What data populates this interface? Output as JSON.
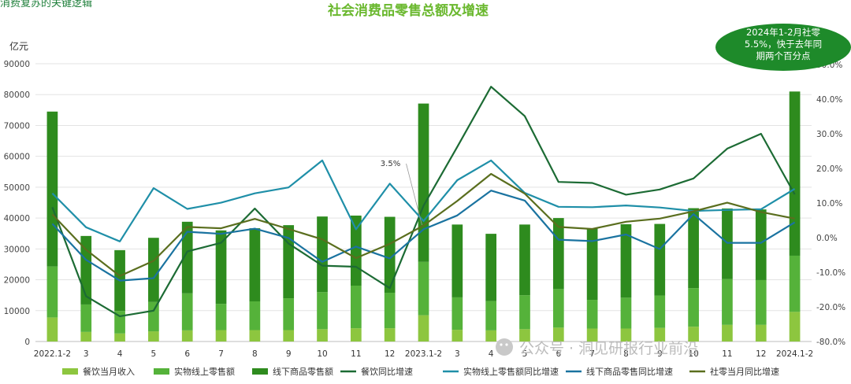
{
  "header": {
    "corner_text": "消费复苏的关键逻辑"
  },
  "note": {
    "lines": [
      "2024年1-2月社零",
      "5.5%，快于去年同",
      "期两个百分点"
    ],
    "color": "#1e8a2a"
  },
  "watermark": "公众号 · 洞见研报行业前沿",
  "chart_data": {
    "type": "bar",
    "title": "社会消费品零售总额及增速",
    "left_axis_unit": "亿元",
    "ylim_left": [
      0,
      90000
    ],
    "left_ticks": [
      "0",
      "10000",
      "20000",
      "30000",
      "40000",
      "50000",
      "60000",
      "70000",
      "80000",
      "90000"
    ],
    "ylim_right": [
      -0.8,
      0.5
    ],
    "right_ticks": [
      "-80.0%",
      "-20.0%",
      "-10.0%",
      "0.0%",
      "10.0%",
      "20.0%",
      "30.0%",
      "40.0%",
      "50.0%"
    ],
    "categories": [
      "2022.1-2",
      "3",
      "4",
      "5",
      "6",
      "7",
      "8",
      "9",
      "10",
      "11",
      "12",
      "2023.1-2",
      "3",
      "4",
      "5",
      "6",
      "7",
      "8",
      "9",
      "10",
      "11",
      "12",
      "2024.1-2"
    ],
    "bar_series": [
      {
        "name": "餐饮当月收入",
        "color": "#8dc63f",
        "values": [
          7800,
          3100,
          2600,
          3300,
          3600,
          3700,
          3700,
          3700,
          4000,
          4300,
          4300,
          8500,
          3800,
          3600,
          4000,
          4500,
          4200,
          4200,
          4400,
          4800,
          5400,
          5400,
          9600
        ]
      },
      {
        "name": "实物线上零售额",
        "color": "#55b23a",
        "values": [
          16500,
          8900,
          7300,
          9500,
          12000,
          8500,
          9300,
          10300,
          12000,
          13800,
          11500,
          17300,
          10500,
          9500,
          11000,
          12500,
          9300,
          10000,
          10500,
          12500,
          14800,
          14500,
          18200
        ]
      },
      {
        "name": "线下商品零售额",
        "color": "#2e8b1e",
        "values": [
          50200,
          22200,
          19700,
          20800,
          23200,
          23800,
          23700,
          23700,
          24500,
          22700,
          24600,
          51300,
          23600,
          21800,
          22900,
          23000,
          23100,
          23800,
          23200,
          25900,
          22900,
          22900,
          53200
        ]
      }
    ],
    "line_series": [
      {
        "name": "餐饮同比增速",
        "color": "#1c6b34",
        "values": [
          0.088,
          -0.169,
          -0.227,
          -0.211,
          -0.04,
          -0.015,
          0.084,
          -0.017,
          -0.081,
          -0.084,
          -0.146,
          0.092,
          0.262,
          0.436,
          0.351,
          0.161,
          0.158,
          0.124,
          0.139,
          0.171,
          0.257,
          0.3,
          0.125
        ]
      },
      {
        "name": "实物线上零售额同比增速",
        "color": "#1f8fa8",
        "values": [
          0.128,
          0.03,
          -0.011,
          0.143,
          0.083,
          0.101,
          0.128,
          0.145,
          0.223,
          0.024,
          0.156,
          0.048,
          0.166,
          0.223,
          0.129,
          0.089,
          0.088,
          0.093,
          0.087,
          0.077,
          0.08,
          0.082,
          0.141
        ]
      },
      {
        "name": "线下商品零售同比增速",
        "color": "#1a73a0",
        "values": [
          0.04,
          -0.064,
          -0.124,
          -0.117,
          0.017,
          0.011,
          0.026,
          -0.001,
          -0.07,
          -0.026,
          -0.06,
          0.024,
          0.064,
          0.136,
          0.107,
          -0.006,
          -0.01,
          0.009,
          -0.033,
          0.068,
          -0.015,
          -0.015,
          0.044
        ]
      },
      {
        "name": "社零当月同比增速",
        "color": "#5a6e1e",
        "values": [
          0.067,
          -0.035,
          -0.111,
          -0.067,
          0.031,
          0.027,
          0.054,
          0.025,
          -0.005,
          -0.059,
          -0.018,
          0.035,
          0.106,
          0.184,
          0.127,
          0.031,
          0.025,
          0.046,
          0.055,
          0.076,
          0.101,
          0.074,
          0.055
        ]
      }
    ],
    "annotation": {
      "text": "3.5%",
      "category": "2023.1-2"
    },
    "legend_position": "bottom"
  }
}
